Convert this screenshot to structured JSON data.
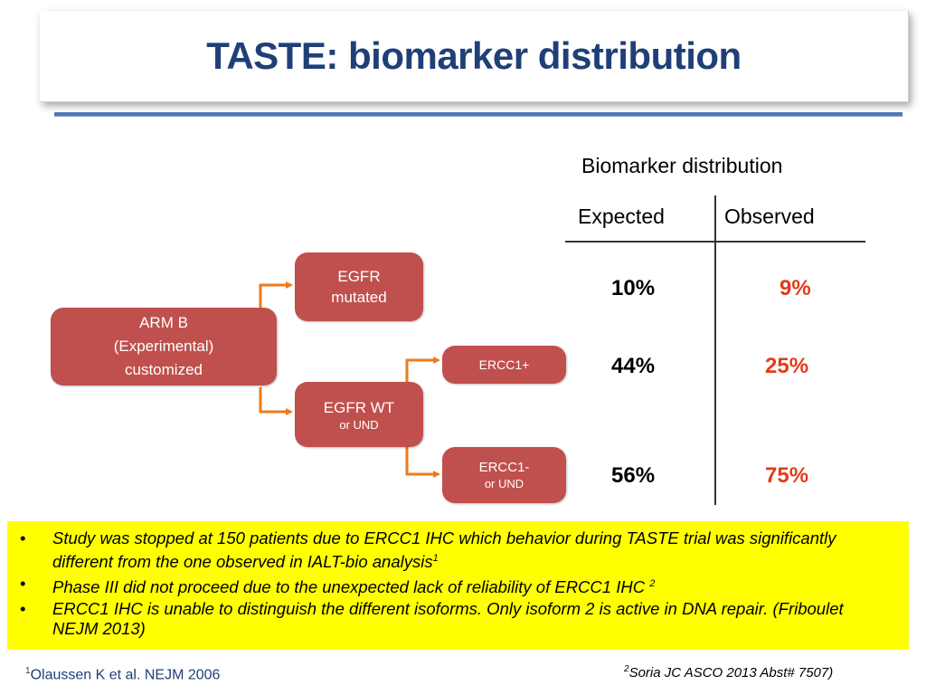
{
  "slide": {
    "title": "TASTE: biomarker distribution"
  },
  "diagram": {
    "arm_b": {
      "line1": "ARM B",
      "line2": "(Experimental)",
      "line3": "customized"
    },
    "egfr_mutated": {
      "line1": "EGFR",
      "line2": "mutated"
    },
    "egfr_wt": {
      "line1": "EGFR WT",
      "line2": "or UND"
    },
    "ercc1_pos": {
      "line1": "ERCC1+"
    },
    "ercc1_neg": {
      "line1": "ERCC1-",
      "line2": "or UND"
    },
    "colors": {
      "box": "#c0504d",
      "arrow": "#f07a1a"
    }
  },
  "table": {
    "heading": "Biomarker distribution",
    "columns": [
      "Expected",
      "Observed"
    ],
    "rows": [
      {
        "expected": "10%",
        "observed": "9%"
      },
      {
        "expected": "44%",
        "observed": "25%"
      },
      {
        "expected": "56%",
        "observed": "75%"
      }
    ],
    "colors": {
      "observed": "#e23b1a"
    }
  },
  "notes": {
    "bullet": "•",
    "items": [
      {
        "text": "Study was stopped at 150 patients due  to ERCC1 IHC which behavior during TASTE trial was significantly different from the one observed in IALT-bio analysis",
        "sup": "1"
      },
      {
        "text": "Phase III did not proceed due to the unexpected lack of reliability of ERCC1 IHC ",
        "sup": "2"
      },
      {
        "text": "ERCC1 IHC is unable to distinguish the different isoforms. Only isoform 2 is active in DNA repair. (Friboulet NEJM 2013)",
        "sup": ""
      }
    ],
    "background": "#ffff00"
  },
  "references": {
    "ref1": {
      "sup": "1",
      "text": "Olaussen K et al. NEJM 2006"
    },
    "ref2": {
      "sup": "2",
      "text": "Soria JC ASCO 2013 Abst# 7507)"
    }
  }
}
